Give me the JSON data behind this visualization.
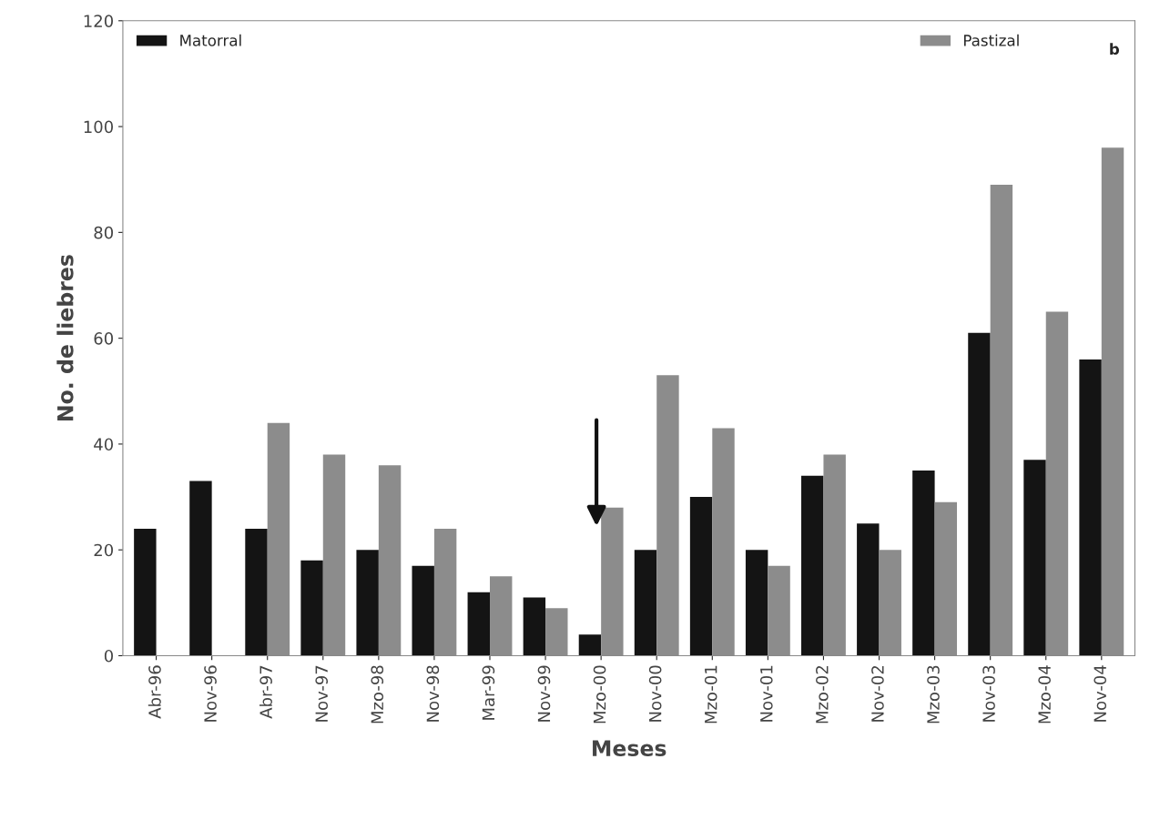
{
  "chart_data": {
    "type": "bar",
    "xlabel": "Meses",
    "ylabel": "No. de liebres",
    "categories": [
      "Abr-96",
      "Nov-96",
      "Abr-97",
      "Nov-97",
      "Mzo-98",
      "Nov-98",
      "Mar-99",
      "Nov-99",
      "Mzo-00",
      "Nov-00",
      "Mzo-01",
      "Nov-01",
      "Mzo-02",
      "Nov-02",
      "Mzo-03",
      "Nov-03",
      "Mzo-04",
      "Nov-04"
    ],
    "series": [
      {
        "name": "Matorral",
        "color": "#141414",
        "values": [
          24,
          33,
          24,
          18,
          20,
          17,
          12,
          11,
          4,
          20,
          30,
          20,
          34,
          25,
          35,
          61,
          37,
          56
        ]
      },
      {
        "name": "Pastizal",
        "color": "#8c8c8c",
        "values": [
          null,
          null,
          44,
          38,
          36,
          24,
          15,
          9,
          28,
          53,
          43,
          17,
          38,
          20,
          29,
          89,
          65,
          96
        ]
      }
    ],
    "ylim": [
      0,
      120
    ],
    "yticks": [
      0,
      20,
      40,
      60,
      80,
      100,
      120
    ],
    "annotations": [
      "b"
    ],
    "legend": "top",
    "grid": false
  }
}
